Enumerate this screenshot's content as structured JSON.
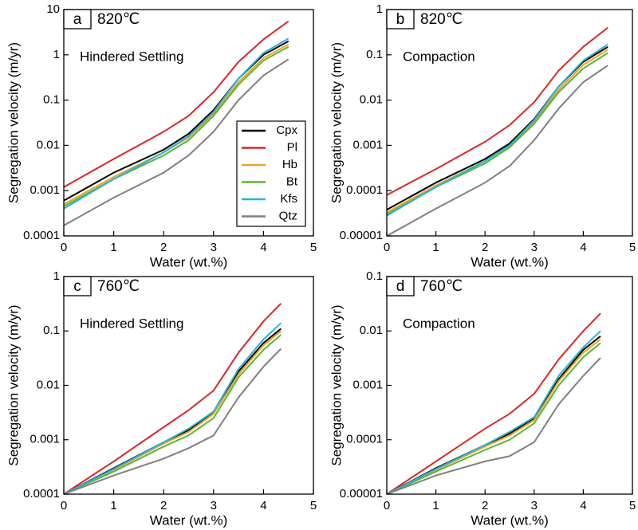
{
  "chart_data": [
    {
      "type": "line",
      "panel": "a",
      "temperature": "820℃",
      "annotation": "Hindered Settling",
      "xlabel": "Water (wt.%)",
      "ylabel": "Segregation velocity (m/yr)",
      "log_y": true,
      "legend": "right",
      "xlim": [
        0,
        5
      ],
      "xticks": [
        0,
        1,
        2,
        3,
        4,
        5
      ],
      "ylim": [
        0.0001,
        10
      ],
      "yticks": [
        0.0001,
        0.001,
        0.01,
        0.1,
        1,
        10
      ],
      "x": [
        0,
        1,
        2,
        2.5,
        3,
        3.5,
        4,
        4.5
      ],
      "series": [
        {
          "name": "Cpx",
          "color": "#000000",
          "values": [
            0.0006,
            0.0025,
            0.008,
            0.018,
            0.06,
            0.3,
            1.0,
            2.0
          ]
        },
        {
          "name": "Pl",
          "color": "#d8272b",
          "values": [
            0.0012,
            0.005,
            0.02,
            0.045,
            0.15,
            0.7,
            2.2,
            5.5
          ]
        },
        {
          "name": "Hb",
          "color": "#eda125",
          "values": [
            0.0005,
            0.002,
            0.007,
            0.015,
            0.05,
            0.25,
            0.85,
            1.7
          ]
        },
        {
          "name": "Bt",
          "color": "#5cb534",
          "values": [
            0.00045,
            0.0018,
            0.006,
            0.013,
            0.045,
            0.22,
            0.75,
            1.5
          ]
        },
        {
          "name": "Kfs",
          "color": "#27b3de",
          "values": [
            0.0004,
            0.0018,
            0.007,
            0.016,
            0.055,
            0.3,
            1.1,
            2.3
          ]
        },
        {
          "name": "Qtz",
          "color": "#7f7f7f",
          "values": [
            0.00017,
            0.0007,
            0.0025,
            0.006,
            0.02,
            0.1,
            0.35,
            0.8
          ]
        }
      ]
    },
    {
      "type": "line",
      "panel": "b",
      "temperature": "820℃",
      "annotation": "Compaction",
      "xlabel": "Water (wt.%)",
      "ylabel": "Segregation velocity (m/yr)",
      "log_y": true,
      "xlim": [
        0,
        5
      ],
      "xticks": [
        0,
        1,
        2,
        3,
        4,
        5
      ],
      "ylim": [
        1e-05,
        1
      ],
      "yticks": [
        1e-05,
        0.0001,
        0.001,
        0.01,
        0.1,
        1
      ],
      "x": [
        0,
        1,
        2,
        2.5,
        3,
        3.5,
        4,
        4.5
      ],
      "series": [
        {
          "color": "#000000",
          "values": [
            3.8e-05,
            0.00015,
            0.0005,
            0.0011,
            0.0038,
            0.02,
            0.07,
            0.15
          ]
        },
        {
          "color": "#d8272b",
          "values": [
            8e-05,
            0.0003,
            0.0012,
            0.0028,
            0.009,
            0.045,
            0.15,
            0.4
          ]
        },
        {
          "color": "#eda125",
          "values": [
            3.3e-05,
            0.00013,
            0.00045,
            0.001,
            0.0033,
            0.017,
            0.06,
            0.13
          ]
        },
        {
          "color": "#5cb534",
          "values": [
            3e-05,
            0.00012,
            0.0004,
            0.0009,
            0.003,
            0.015,
            0.05,
            0.11
          ]
        },
        {
          "color": "#27b3de",
          "values": [
            2.8e-05,
            0.00012,
            0.00045,
            0.001,
            0.0036,
            0.02,
            0.075,
            0.17
          ]
        },
        {
          "color": "#7f7f7f",
          "values": [
            1e-05,
            4e-05,
            0.00015,
            0.00035,
            0.0013,
            0.0065,
            0.025,
            0.058
          ]
        }
      ]
    },
    {
      "type": "line",
      "panel": "c",
      "temperature": "760℃",
      "annotation": "Hindered Settling",
      "xlabel": "Water (wt.%)",
      "ylabel": "Segregation velocity (m/yr)",
      "log_y": true,
      "xlim": [
        0,
        5
      ],
      "xticks": [
        0,
        1,
        2,
        3,
        4,
        5
      ],
      "ylim": [
        0.0001,
        1
      ],
      "yticks": [
        0.0001,
        0.001,
        0.01,
        0.1,
        1
      ],
      "x": [
        0,
        1,
        2,
        2.5,
        3,
        3.5,
        4,
        4.35
      ],
      "series": [
        {
          "color": "#000000",
          "values": [
            0.0001,
            0.0003,
            0.0009,
            0.0015,
            0.0032,
            0.018,
            0.06,
            0.11
          ]
        },
        {
          "color": "#d8272b",
          "values": [
            0.0001,
            0.0004,
            0.0017,
            0.0035,
            0.008,
            0.04,
            0.15,
            0.32
          ]
        },
        {
          "color": "#eda125",
          "values": [
            0.0001,
            0.00028,
            0.00085,
            0.0014,
            0.003,
            0.016,
            0.055,
            0.1
          ]
        },
        {
          "color": "#5cb534",
          "values": [
            0.0001,
            0.00026,
            0.00075,
            0.0012,
            0.0025,
            0.014,
            0.045,
            0.085
          ]
        },
        {
          "color": "#27b3de",
          "values": [
            0.0001,
            0.00029,
            0.0009,
            0.0016,
            0.0033,
            0.02,
            0.07,
            0.14
          ]
        },
        {
          "color": "#7f7f7f",
          "values": [
            0.0001,
            0.00022,
            0.00045,
            0.0007,
            0.0012,
            0.006,
            0.022,
            0.047
          ]
        }
      ]
    },
    {
      "type": "line",
      "panel": "d",
      "temperature": "760℃",
      "annotation": "Compaction",
      "xlabel": "Water (wt.%)",
      "ylabel": "Segregation velocity (m/yr)",
      "log_y": true,
      "xlim": [
        0,
        5
      ],
      "xticks": [
        0,
        1,
        2,
        3,
        4,
        5
      ],
      "ylim": [
        1e-05,
        0.1
      ],
      "yticks": [
        1e-05,
        0.0001,
        0.001,
        0.01,
        0.1
      ],
      "x": [
        0,
        1,
        2,
        2.5,
        3,
        3.5,
        4,
        4.35
      ],
      "series": [
        {
          "color": "#000000",
          "values": [
            1e-05,
            3e-05,
            8e-05,
            0.00013,
            0.00025,
            0.0013,
            0.0045,
            0.008
          ]
        },
        {
          "color": "#d8272b",
          "values": [
            1e-05,
            4e-05,
            0.00016,
            0.0003,
            0.0007,
            0.003,
            0.01,
            0.021
          ]
        },
        {
          "color": "#eda125",
          "values": [
            1e-05,
            2.8e-05,
            7.5e-05,
            0.00012,
            0.00023,
            0.0012,
            0.004,
            0.007
          ]
        },
        {
          "color": "#5cb534",
          "values": [
            1e-05,
            2.6e-05,
            6.5e-05,
            0.0001,
            0.0002,
            0.001,
            0.0033,
            0.006
          ]
        },
        {
          "color": "#27b3de",
          "values": [
            1e-05,
            2.9e-05,
            8e-05,
            0.00014,
            0.00026,
            0.0015,
            0.005,
            0.01
          ]
        },
        {
          "color": "#7f7f7f",
          "values": [
            1e-05,
            2.2e-05,
            4e-05,
            5e-05,
            9e-05,
            0.00045,
            0.0015,
            0.0032
          ]
        }
      ]
    }
  ]
}
